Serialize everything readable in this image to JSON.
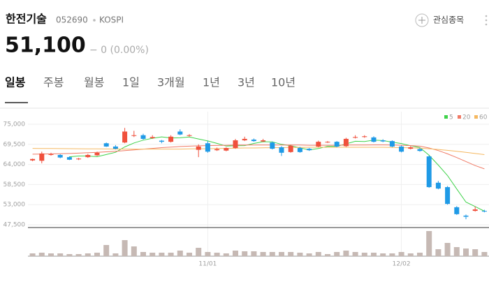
{
  "header": {
    "name": "한전기술",
    "code": "052690",
    "market": "KOSPI",
    "price": "51,100",
    "change": "− 0 (0.00%)",
    "watch_label": "관심종목"
  },
  "tabs": [
    "일봉",
    "주봉",
    "월봉",
    "1일",
    "3개월",
    "1년",
    "3년",
    "10년"
  ],
  "active_tab": 0,
  "chart_data": {
    "type": "candlestick",
    "categories": [
      null,
      null,
      null,
      null,
      null,
      null,
      null,
      null,
      null,
      null,
      null,
      null,
      null,
      null,
      null,
      null,
      null,
      null,
      null,
      "11/01",
      null,
      null,
      null,
      null,
      null,
      null,
      null,
      null,
      null,
      null,
      null,
      null,
      null,
      null,
      null,
      null,
      null,
      null,
      null,
      null,
      "12/02",
      null,
      null,
      null,
      null,
      null,
      null,
      null,
      null,
      null
    ],
    "open": [
      65100,
      65000,
      66600,
      66600,
      66000,
      65400,
      66000,
      66500,
      69800,
      68900,
      70000,
      71800,
      72000,
      71200,
      70500,
      70200,
      73000,
      71800,
      68000,
      69800,
      67900,
      67800,
      68500,
      70600,
      70800,
      70300,
      70000,
      68700,
      67400,
      68500,
      68300,
      68900,
      70100,
      70200,
      69000,
      71300,
      71500,
      71400,
      70600,
      70400,
      68900,
      68300,
      68200,
      66200,
      59000,
      57800,
      52300,
      50000,
      51300,
      51300
    ],
    "high": [
      65600,
      67500,
      67200,
      66800,
      66200,
      65800,
      66900,
      67500,
      70000,
      69300,
      74000,
      73200,
      72400,
      72000,
      70700,
      72000,
      73600,
      72300,
      69500,
      70400,
      68600,
      68700,
      71000,
      71600,
      71100,
      71000,
      70300,
      69000,
      69400,
      68800,
      68500,
      70500,
      70400,
      70400,
      71300,
      72000,
      72000,
      71700,
      70900,
      70600,
      69200,
      69000,
      68500,
      66500,
      59500,
      58100,
      52600,
      50300,
      52500,
      51600
    ],
    "low": [
      64900,
      64300,
      66400,
      65700,
      65200,
      65200,
      65800,
      66300,
      68800,
      68100,
      69800,
      71500,
      70800,
      71000,
      69800,
      70000,
      72000,
      71600,
      66000,
      67200,
      67700,
      67600,
      68300,
      70400,
      70200,
      70100,
      68100,
      66300,
      67200,
      67200,
      67700,
      68700,
      69900,
      68700,
      68800,
      71100,
      71300,
      70000,
      70100,
      68700,
      67300,
      68100,
      67500,
      57600,
      57200,
      53000,
      50200,
      49000,
      51100,
      50900
    ],
    "close": [
      65500,
      67000,
      66800,
      65900,
      65300,
      65600,
      66600,
      67200,
      68900,
      68300,
      73000,
      72000,
      71000,
      71500,
      70200,
      71600,
      72200,
      72000,
      68900,
      67500,
      68200,
      68500,
      70600,
      71000,
      70400,
      70600,
      68300,
      67200,
      69100,
      67400,
      67900,
      70200,
      70200,
      68900,
      71000,
      71500,
      71700,
      70200,
      70300,
      68900,
      67500,
      68700,
      67700,
      57800,
      57400,
      53200,
      50400,
      49700,
      51700,
      51100
    ],
    "up_color": "#f0503c",
    "down_color": "#1f9ae6",
    "series": [
      {
        "name": "5",
        "color": "#3fd24a",
        "values": [
          null,
          null,
          null,
          null,
          66100,
          66320,
          66320,
          66120,
          66720,
          67320,
          68800,
          69880,
          70640,
          71160,
          71540,
          71260,
          71300,
          71500,
          70980,
          70440,
          69760,
          69020,
          69140,
          69160,
          69740,
          70220,
          70180,
          69500,
          69120,
          68520,
          68000,
          68360,
          68960,
          68920,
          69640,
          70340,
          70260,
          70660,
          70540,
          70120,
          69720,
          69120,
          68620,
          66520,
          63820,
          60960,
          57300,
          53700,
          52480,
          51220
        ]
      },
      {
        "name": "20",
        "color": "#f07a66",
        "values": [
          66800,
          66850,
          66900,
          66950,
          67000,
          67100,
          67200,
          67300,
          67450,
          67600,
          67800,
          68000,
          68200,
          68400,
          68600,
          68750,
          68900,
          69000,
          69100,
          69150,
          69200,
          69250,
          69300,
          69300,
          69300,
          69300,
          69300,
          69300,
          69300,
          69300,
          69250,
          69250,
          69250,
          69250,
          69300,
          69300,
          69300,
          69350,
          69350,
          69300,
          69250,
          69150,
          69000,
          68500,
          67800,
          66900,
          65900,
          64800,
          63700,
          62800
        ]
      },
      {
        "name": "60",
        "color": "#f5b860",
        "values": [
          68400,
          68380,
          68360,
          68340,
          68320,
          68300,
          68280,
          68260,
          68240,
          68220,
          68200,
          68200,
          68200,
          68200,
          68200,
          68200,
          68200,
          68250,
          68300,
          68300,
          68350,
          68400,
          68450,
          68500,
          68500,
          68550,
          68600,
          68600,
          68650,
          68650,
          68700,
          68700,
          68700,
          68700,
          68700,
          68700,
          68700,
          68700,
          68700,
          68650,
          68600,
          68550,
          68450,
          68300,
          68100,
          67850,
          67600,
          67300,
          67000,
          66700
        ]
      }
    ],
    "volume": {
      "color": "#c6b9b4",
      "ylim": [
        0,
        400000
      ],
      "values": [
        40000,
        50000,
        40000,
        40000,
        30000,
        30000,
        40000,
        50000,
        160000,
        40000,
        230000,
        140000,
        60000,
        50000,
        50000,
        50000,
        80000,
        50000,
        120000,
        60000,
        50000,
        40000,
        80000,
        70000,
        70000,
        60000,
        60000,
        60000,
        60000,
        50000,
        40000,
        60000,
        30000,
        60000,
        80000,
        60000,
        50000,
        50000,
        40000,
        40000,
        60000,
        40000,
        50000,
        360000,
        100000,
        190000,
        130000,
        110000,
        100000,
        60000
      ]
    },
    "ylim": [
      47500,
      75000
    ],
    "yticks": [
      {
        "value": 47500,
        "label": "47,500"
      },
      {
        "value": 53000,
        "label": "53,000"
      },
      {
        "value": 58500,
        "label": "58,500"
      },
      {
        "value": 64000,
        "label": "64,000"
      },
      {
        "value": 69500,
        "label": "69,500"
      },
      {
        "value": 75000,
        "label": "75,000"
      }
    ],
    "grid": true
  }
}
